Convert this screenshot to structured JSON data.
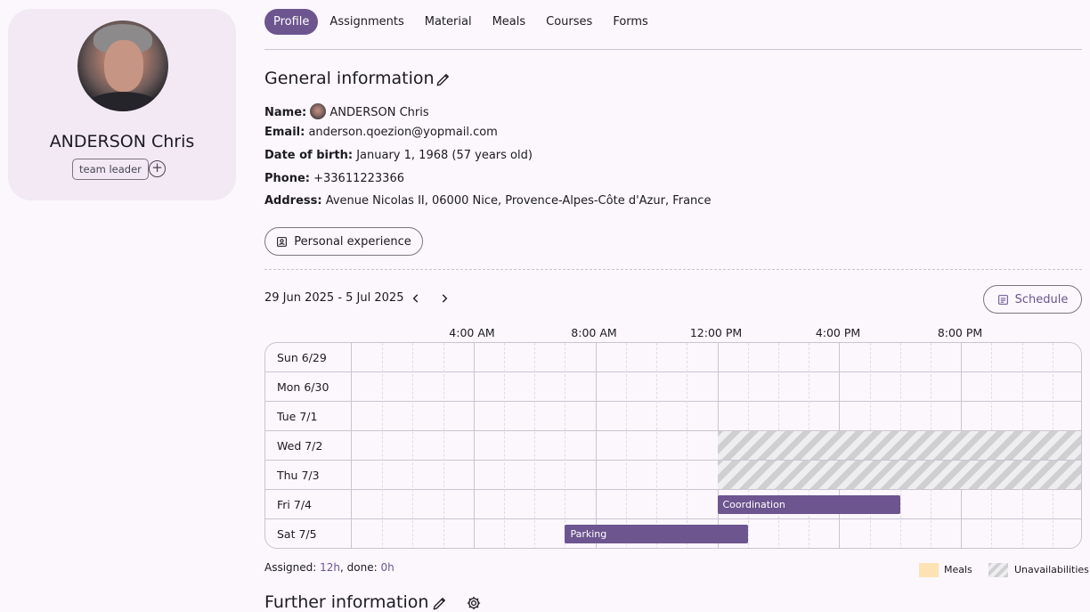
{
  "profile": {
    "name": "ANDERSON Chris",
    "role_tag": "team leader"
  },
  "tabs": [
    {
      "label": "Profile",
      "active": true
    },
    {
      "label": "Assignments",
      "active": false
    },
    {
      "label": "Material",
      "active": false
    },
    {
      "label": "Meals",
      "active": false
    },
    {
      "label": "Courses",
      "active": false
    },
    {
      "label": "Forms",
      "active": false
    }
  ],
  "general": {
    "title": "General information",
    "name_label": "Name:",
    "name_value": "ANDERSON Chris",
    "email_label": "Email:",
    "email_value": "anderson.qoezion@yopmail.com",
    "dob_label": "Date of birth:",
    "dob_value": "January 1, 1968 (57 years old)",
    "phone_label": "Phone:",
    "phone_value": "+33611223366",
    "address_label": "Address:",
    "address_value": "Avenue Nicolas II, 06000 Nice, Provence-Alpes-Côte d'Azur, France",
    "personal_experience_button": "Personal experience"
  },
  "schedule": {
    "date_range": "29 Jun 2025 - 5 Jul 2025",
    "schedule_button": "Schedule",
    "hour_labels": [
      "4:00 AM",
      "8:00 AM",
      "12:00 PM",
      "4:00 PM",
      "8:00 PM"
    ],
    "days": [
      "Sun 6/29",
      "Mon 6/30",
      "Tue 7/1",
      "Wed 7/2",
      "Thu 7/3",
      "Fri 7/4",
      "Sat 7/5"
    ],
    "events": [
      {
        "label": "Coordination",
        "day": "Fri 7/4",
        "start_hour": 12.0,
        "end_hour": 18.0
      },
      {
        "label": "Parking",
        "day": "Sat 7/5",
        "start_hour": 7.0,
        "end_hour": 13.0
      }
    ],
    "unavailabilities": [
      {
        "day": "Wed 7/2",
        "start_hour": 12.0,
        "end_hour": 24.0
      },
      {
        "day": "Thu 7/3",
        "start_hour": 12.0,
        "end_hour": 24.0
      }
    ],
    "assigned_label": "Assigned: ",
    "assigned_value": "12h",
    "done_label": ", done: ",
    "done_value": "0h",
    "legend_meals": "Meals",
    "legend_unavailabilities": "Unavailabilities",
    "colors": {
      "accent": "#6d558f",
      "meals": "#fde3b4",
      "unavailability": "#cfcfd1"
    }
  },
  "further": {
    "title": "Further information"
  }
}
